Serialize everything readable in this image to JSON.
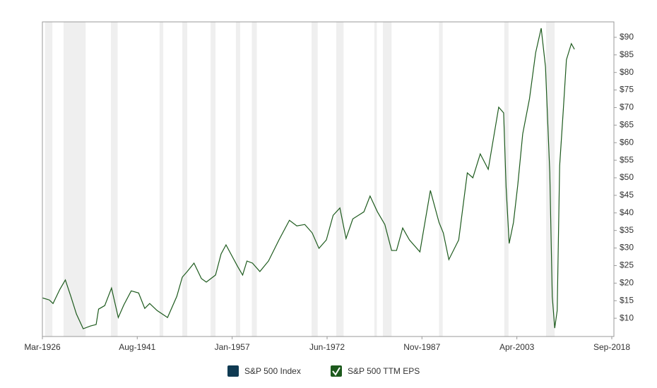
{
  "chart_data": {
    "type": "line",
    "xlim": [
      1926.17,
      2018.67
    ],
    "xticks": [
      {
        "value": 1926.17,
        "label": "Mar-1926"
      },
      {
        "value": 1941.58,
        "label": "Aug-1941"
      },
      {
        "value": 1957.0,
        "label": "Jan-1957"
      },
      {
        "value": 1972.42,
        "label": "Jun-1972"
      },
      {
        "value": 1987.83,
        "label": "Nov-1987"
      },
      {
        "value": 2003.25,
        "label": "Apr-2003"
      },
      {
        "value": 2018.67,
        "label": "Sep-2018"
      }
    ],
    "ylim": [
      4.8,
      94.4
    ],
    "yticks": [
      {
        "value": 10,
        "label": "$10"
      },
      {
        "value": 15,
        "label": "$15"
      },
      {
        "value": 20,
        "label": "$20"
      },
      {
        "value": 25,
        "label": "$25"
      },
      {
        "value": 30,
        "label": "$30"
      },
      {
        "value": 35,
        "label": "$35"
      },
      {
        "value": 40,
        "label": "$40"
      },
      {
        "value": 45,
        "label": "$45"
      },
      {
        "value": 50,
        "label": "$50"
      },
      {
        "value": 55,
        "label": "$55"
      },
      {
        "value": 60,
        "label": "$60"
      },
      {
        "value": 65,
        "label": "$65"
      },
      {
        "value": 70,
        "label": "$70"
      },
      {
        "value": 75,
        "label": "$75"
      },
      {
        "value": 80,
        "label": "$80"
      },
      {
        "value": 85,
        "label": "$85"
      },
      {
        "value": 90,
        "label": "$90"
      }
    ],
    "recession_color": "#efefef",
    "recessions": [
      [
        1926.6,
        1927.8
      ],
      [
        1929.6,
        1933.2
      ],
      [
        1937.3,
        1938.4
      ],
      [
        1945.2,
        1945.8
      ],
      [
        1948.9,
        1949.7
      ],
      [
        1953.5,
        1954.3
      ],
      [
        1957.6,
        1958.3
      ],
      [
        1960.2,
        1961.0
      ],
      [
        1969.9,
        1970.9
      ],
      [
        1973.9,
        1975.1
      ],
      [
        1980.1,
        1980.5
      ],
      [
        1981.5,
        1982.9
      ],
      [
        1990.6,
        1991.2
      ],
      [
        2001.2,
        2001.9
      ],
      [
        2008.0,
        2009.4
      ]
    ],
    "x": [
      1926.17,
      1927.3,
      1927.9,
      1929.0,
      1929.9,
      1930.8,
      1931.7,
      1932.8,
      1934.0,
      1934.9,
      1935.3,
      1936.3,
      1937.4,
      1938.5,
      1939.4,
      1940.6,
      1941.8,
      1942.8,
      1943.6,
      1944.8,
      1946.5,
      1948.0,
      1948.9,
      1949.7,
      1950.8,
      1952.0,
      1952.8,
      1954.3,
      1955.2,
      1956.0,
      1957.1,
      1957.9,
      1958.7,
      1959.4,
      1960.3,
      1961.5,
      1962.9,
      1964.6,
      1966.3,
      1967.5,
      1968.8,
      1970.0,
      1971.1,
      1972.3,
      1973.4,
      1974.5,
      1975.5,
      1976.6,
      1978.4,
      1979.4,
      1980.6,
      1981.8,
      1982.9,
      1983.7,
      1984.7,
      1985.8,
      1987.5,
      1989.2,
      1990.6,
      1991.3,
      1992.2,
      1993.8,
      1995.2,
      1996.1,
      1997.3,
      1998.6,
      2000.3,
      2001.1,
      2001.5,
      2002.0,
      2002.7,
      2003.4,
      2004.2,
      2005.3,
      2006.3,
      2007.2,
      2007.9,
      2008.6,
      2009.0,
      2009.4,
      2009.8,
      2010.2,
      2010.8,
      2011.3,
      2012.1,
      2012.6
    ],
    "series": [
      {
        "name": "S&P 500 Index",
        "color": "#0f3a52",
        "visible": false
      },
      {
        "name": "S&P 500 TTM EPS",
        "color": "#1d5a1d",
        "visible": true,
        "values": [
          15.8,
          15.2,
          14.2,
          18.2,
          20.9,
          16.2,
          11.2,
          7.0,
          7.8,
          8.2,
          12.6,
          13.6,
          18.6,
          10.2,
          13.8,
          17.8,
          17.2,
          12.8,
          14.2,
          12.2,
          10.2,
          16.2,
          21.7,
          23.3,
          25.7,
          21.3,
          20.3,
          22.3,
          28.3,
          30.9,
          27.3,
          24.7,
          22.3,
          26.3,
          25.7,
          23.3,
          26.3,
          32.3,
          37.9,
          36.3,
          36.7,
          34.3,
          29.9,
          32.3,
          39.3,
          41.4,
          32.7,
          38.3,
          40.3,
          44.8,
          40.3,
          36.7,
          29.3,
          29.3,
          35.7,
          32.3,
          28.9,
          46.4,
          37.3,
          34.3,
          26.7,
          32.3,
          51.4,
          50.0,
          56.8,
          52.4,
          70.1,
          68.5,
          47.4,
          31.3,
          37.3,
          48.0,
          62.5,
          72.5,
          85.6,
          92.6,
          81.6,
          51.4,
          16.2,
          7.2,
          12.2,
          53.4,
          69.5,
          83.6,
          88.2,
          86.6
        ]
      }
    ]
  }
}
